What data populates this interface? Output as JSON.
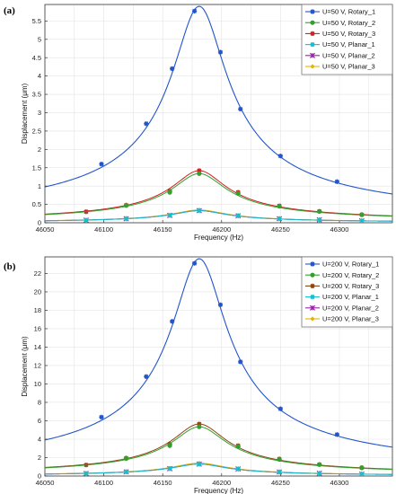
{
  "chart_data": [
    {
      "type": "line",
      "panel_label": "(a)",
      "xlabel": "Frequency (Hz)",
      "ylabel": "Displacement (μm)",
      "xlim": [
        46050,
        46345
      ],
      "ylim": [
        0,
        5.95
      ],
      "xticks": [
        46050,
        46100,
        46150,
        46200,
        46250,
        46300
      ],
      "yticks": [
        0,
        0.5,
        1,
        1.5,
        2,
        2.5,
        3,
        3.5,
        4,
        4.5,
        5,
        5.5
      ],
      "ytick_labels": [
        "0",
        "0.5",
        "1",
        "1.5",
        "2",
        "2.5",
        "3",
        "3.5",
        "4",
        "4.5",
        "5",
        "5.5"
      ],
      "grid": true,
      "legend_position": "top-right",
      "resonance": {
        "f0": 46181,
        "width": 22
      },
      "series": [
        {
          "name": "U=50 V, Rotary_1",
          "color": "#2255cc",
          "marker": "star",
          "peak": 5.9,
          "points": [
            [
              46098,
              1.6
            ],
            [
              46136,
              2.7
            ],
            [
              46158,
              4.2
            ],
            [
              46177,
              5.77
            ],
            [
              46199,
              4.65
            ],
            [
              46216,
              3.1
            ],
            [
              46250,
              1.82
            ],
            [
              46298,
              1.12
            ]
          ]
        },
        {
          "name": "U=50 V, Rotary_2",
          "color": "#33a02c",
          "marker": "circle",
          "peak": 1.34,
          "points": [
            [
              46119,
              0.47
            ],
            [
              46156,
              0.83
            ],
            [
              46181,
              1.34
            ],
            [
              46214,
              0.8
            ],
            [
              46249,
              0.45
            ],
            [
              46283,
              0.31
            ],
            [
              46319,
              0.22
            ]
          ]
        },
        {
          "name": "U=50 V, Rotary_3",
          "color": "#cc2222",
          "marker": "star",
          "peak": 1.42,
          "points": [
            [
              46085,
              0.3
            ],
            [
              46119,
              0.48
            ],
            [
              46156,
              0.86
            ],
            [
              46181,
              1.42
            ],
            [
              46214,
              0.83
            ],
            [
              46249,
              0.46
            ],
            [
              46283,
              0.31
            ],
            [
              46319,
              0.22
            ]
          ]
        },
        {
          "name": "U=50 V, Planar_1",
          "color": "#17becf",
          "marker": "star",
          "peak": 0.33,
          "points": [
            [
              46085,
              0.07
            ],
            [
              46119,
              0.11
            ],
            [
              46156,
              0.2
            ],
            [
              46181,
              0.33
            ],
            [
              46214,
              0.19
            ],
            [
              46249,
              0.11
            ],
            [
              46283,
              0.08
            ],
            [
              46319,
              0.05
            ]
          ]
        },
        {
          "name": "U=50 V, Planar_2",
          "color": "#9b1fa8",
          "marker": "cross",
          "peak": 0.33,
          "points": [
            [
              46085,
              0.07
            ],
            [
              46119,
              0.11
            ],
            [
              46156,
              0.2
            ],
            [
              46181,
              0.33
            ],
            [
              46214,
              0.19
            ],
            [
              46249,
              0.11
            ],
            [
              46283,
              0.08
            ],
            [
              46319,
              0.05
            ]
          ]
        },
        {
          "name": "U=50 V, Planar_3",
          "color": "#e8b400",
          "marker": "diamond",
          "peak": 0.35,
          "points": [
            [
              46085,
              0.07
            ],
            [
              46119,
              0.12
            ],
            [
              46156,
              0.21
            ],
            [
              46181,
              0.35
            ],
            [
              46214,
              0.2
            ],
            [
              46249,
              0.12
            ],
            [
              46283,
              0.08
            ],
            [
              46319,
              0.06
            ]
          ]
        }
      ]
    },
    {
      "type": "line",
      "panel_label": "(b)",
      "xlabel": "Frequency (Hz)",
      "ylabel": "Displacement (μm)",
      "xlim": [
        46050,
        46345
      ],
      "ylim": [
        0,
        23.8
      ],
      "xticks": [
        46050,
        46100,
        46150,
        46200,
        46250,
        46300
      ],
      "yticks": [
        0,
        2,
        4,
        6,
        8,
        10,
        12,
        14,
        16,
        18,
        20,
        22
      ],
      "ytick_labels": [
        "0",
        "2",
        "4",
        "6",
        "8",
        "10",
        "12",
        "14",
        "16",
        "18",
        "20",
        "22"
      ],
      "grid": true,
      "legend_position": "top-right",
      "resonance": {
        "f0": 46181,
        "width": 22
      },
      "series": [
        {
          "name": "U=200 V, Rotary_1",
          "color": "#2255cc",
          "marker": "star",
          "peak": 23.6,
          "points": [
            [
              46098,
              6.4
            ],
            [
              46136,
              10.8
            ],
            [
              46158,
              16.8
            ],
            [
              46177,
              23.1
            ],
            [
              46199,
              18.6
            ],
            [
              46216,
              12.4
            ],
            [
              46250,
              7.3
            ],
            [
              46298,
              4.5
            ]
          ]
        },
        {
          "name": "U=200 V, Rotary_2",
          "color": "#33a02c",
          "marker": "circle",
          "peak": 5.35,
          "points": [
            [
              46119,
              1.9
            ],
            [
              46156,
              3.3
            ],
            [
              46181,
              5.35
            ],
            [
              46214,
              3.2
            ],
            [
              46249,
              1.8
            ],
            [
              46283,
              1.25
            ],
            [
              46319,
              0.9
            ]
          ]
        },
        {
          "name": "U=200 V, Rotary_3",
          "color": "#8b4513",
          "marker": "star",
          "peak": 5.65,
          "points": [
            [
              46085,
              1.2
            ],
            [
              46119,
              1.95
            ],
            [
              46156,
              3.45
            ],
            [
              46181,
              5.65
            ],
            [
              46214,
              3.3
            ],
            [
              46249,
              1.85
            ],
            [
              46283,
              1.25
            ],
            [
              46319,
              0.9
            ]
          ]
        },
        {
          "name": "U=200 V, Planar_1",
          "color": "#17becf",
          "marker": "star",
          "peak": 1.3,
          "points": [
            [
              46085,
              0.28
            ],
            [
              46119,
              0.45
            ],
            [
              46156,
              0.8
            ],
            [
              46181,
              1.3
            ],
            [
              46214,
              0.77
            ],
            [
              46249,
              0.44
            ],
            [
              46283,
              0.3
            ],
            [
              46319,
              0.21
            ]
          ]
        },
        {
          "name": "U=200 V, Planar_2",
          "color": "#9b1fa8",
          "marker": "cross",
          "peak": 1.3,
          "points": [
            [
              46085,
              0.28
            ],
            [
              46119,
              0.45
            ],
            [
              46156,
              0.8
            ],
            [
              46181,
              1.3
            ],
            [
              46214,
              0.77
            ],
            [
              46249,
              0.44
            ],
            [
              46283,
              0.3
            ],
            [
              46319,
              0.21
            ]
          ]
        },
        {
          "name": "U=200 V, Planar_3",
          "color": "#e8b400",
          "marker": "diamond",
          "peak": 1.4,
          "points": [
            [
              46085,
              0.3
            ],
            [
              46119,
              0.48
            ],
            [
              46156,
              0.85
            ],
            [
              46181,
              1.4
            ],
            [
              46214,
              0.82
            ],
            [
              46249,
              0.47
            ],
            [
              46283,
              0.32
            ],
            [
              46319,
              0.22
            ]
          ]
        }
      ]
    }
  ]
}
